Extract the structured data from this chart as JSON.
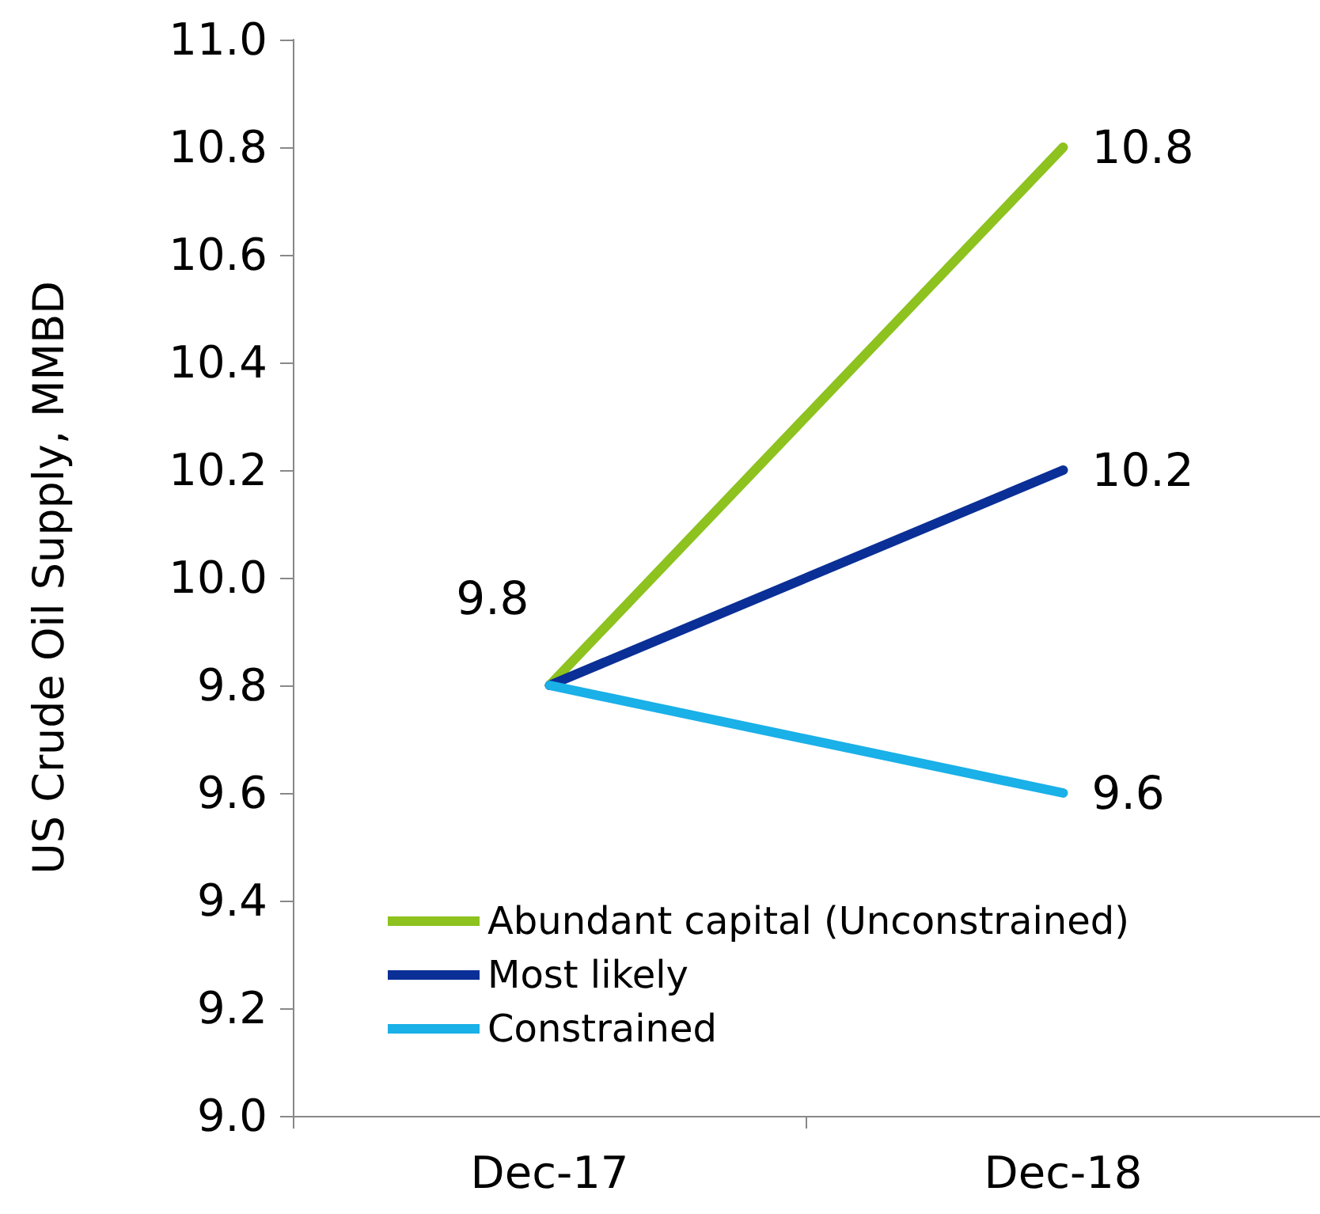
{
  "chart_data": {
    "type": "line",
    "ylabel": "US Crude Oil Supply, MMBD",
    "categories": [
      "Dec-17",
      "Dec-18"
    ],
    "series": [
      {
        "name": "Abundant capital (Unconstrained)",
        "color": "#8dc21f",
        "values": [
          9.8,
          10.8
        ],
        "value_labels": [
          "9.8",
          "10.8"
        ]
      },
      {
        "name": "Most likely",
        "color": "#0a2f96",
        "values": [
          9.8,
          10.2
        ],
        "value_labels": [
          null,
          "10.2"
        ]
      },
      {
        "name": "Constrained",
        "color": "#1ab0e8",
        "values": [
          9.8,
          9.6
        ],
        "value_labels": [
          null,
          "9.6"
        ]
      }
    ],
    "ylim": [
      9,
      11
    ],
    "yticks": [
      {
        "value": 9,
        "label": "9.0"
      },
      9.2,
      9.4,
      9.6,
      9.8,
      {
        "value": 10,
        "label": "10.0"
      },
      10.2,
      10.4,
      10.6,
      10.8,
      {
        "value": 11,
        "label": "11.0"
      }
    ],
    "grid": false,
    "legend": "bottom",
    "marker": "none",
    "line_style": "solid"
  }
}
